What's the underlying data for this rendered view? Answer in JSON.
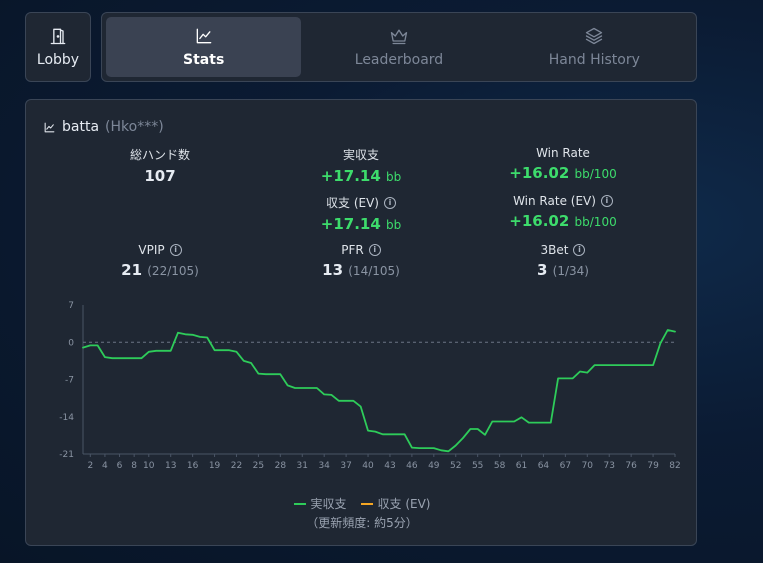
{
  "nav": {
    "lobby_label": "Lobby",
    "tabs": [
      {
        "label": "Stats",
        "icon": "chart-line-icon",
        "active": true
      },
      {
        "label": "Leaderboard",
        "icon": "crown-icon",
        "active": false
      },
      {
        "label": "Hand History",
        "icon": "layers-icon",
        "active": false
      }
    ]
  },
  "card": {
    "player_name": "batta",
    "player_tag": "(Hko***)",
    "stats": {
      "hands": {
        "label": "総ハンド数",
        "value": "107"
      },
      "real_profit": {
        "label": "実収支",
        "value": "+17.14",
        "unit": "bb"
      },
      "win_rate": {
        "label": "Win Rate",
        "value": "+16.02",
        "unit": "bb/100"
      },
      "ev_profit": {
        "label": "収支 (EV)",
        "value": "+17.14",
        "unit": "bb"
      },
      "ev_win_rate": {
        "label": "Win Rate (EV)",
        "value": "+16.02",
        "unit": "bb/100"
      },
      "vpip": {
        "label": "VPIP",
        "value": "21",
        "detail": "(22/105)"
      },
      "pfr": {
        "label": "PFR",
        "value": "13",
        "detail": "(14/105)"
      },
      "threebet": {
        "label": "3Bet",
        "value": "3",
        "detail": "(1/34)"
      }
    },
    "footnote": "（更新頻度: 約5分）"
  },
  "chart_data": {
    "type": "line",
    "xlabel": "",
    "ylabel": "",
    "ylim": [
      -21,
      7
    ],
    "yticks": [
      7,
      0,
      -7,
      -14,
      -21
    ],
    "xlim": [
      1,
      82
    ],
    "xticks": [
      2,
      4,
      6,
      8,
      10,
      13,
      16,
      19,
      22,
      25,
      28,
      31,
      34,
      37,
      40,
      43,
      46,
      49,
      52,
      55,
      58,
      61,
      64,
      67,
      70,
      73,
      76,
      79,
      82
    ],
    "legend": [
      {
        "name": "実収支",
        "color": "#2ecc5a"
      },
      {
        "name": "収支 (EV)",
        "color": "#f5a623"
      }
    ],
    "series": [
      {
        "name": "実収支",
        "color": "#2ecc5a",
        "x": [
          1,
          2,
          3,
          4,
          5,
          6,
          7,
          8,
          9,
          10,
          11,
          12,
          13,
          14,
          15,
          16,
          17,
          18,
          19,
          20,
          21,
          22,
          23,
          24,
          25,
          26,
          27,
          28,
          29,
          30,
          31,
          32,
          33,
          34,
          35,
          36,
          37,
          38,
          39,
          40,
          41,
          42,
          43,
          44,
          45,
          46,
          47,
          48,
          49,
          50,
          51,
          52,
          53,
          54,
          55,
          56,
          57,
          58,
          59,
          60,
          61,
          62,
          63,
          64,
          65,
          66,
          67,
          68,
          69,
          70,
          71,
          72,
          73,
          74,
          75,
          76,
          77,
          78,
          79,
          80,
          81,
          82
        ],
        "values": [
          -1,
          -0.6,
          -0.6,
          -2.8,
          -3,
          -3,
          -3,
          -3,
          -3,
          -1.8,
          -1.6,
          -1.6,
          -1.6,
          1.8,
          1.5,
          1.4,
          1,
          0.9,
          -1.5,
          -1.5,
          -1.5,
          -1.8,
          -3.5,
          -3.9,
          -5.9,
          -6,
          -6,
          -6,
          -8.1,
          -8.6,
          -8.6,
          -8.6,
          -8.6,
          -9.8,
          -9.9,
          -11,
          -11,
          -11,
          -12.1,
          -16.6,
          -16.8,
          -17.3,
          -17.3,
          -17.3,
          -17.3,
          -19.8,
          -19.9,
          -19.9,
          -19.9,
          -20.3,
          -20.5,
          -19.4,
          -18,
          -16.3,
          -16.3,
          -17.4,
          -14.9,
          -14.9,
          -14.9,
          -14.9,
          -14.1,
          -15.1,
          -15.1,
          -15.1,
          -15.1,
          -6.8,
          -6.8,
          -6.8,
          -5.5,
          -5.7,
          -4.3,
          -4.3,
          -4.3,
          -4.3,
          -4.3,
          -4.3,
          -4.3,
          -4.3,
          -4.3,
          -0.2,
          2.3,
          2.0
        ]
      },
      {
        "name": "収支 (EV)",
        "color": "#f5a623",
        "x": [],
        "values": []
      }
    ]
  }
}
